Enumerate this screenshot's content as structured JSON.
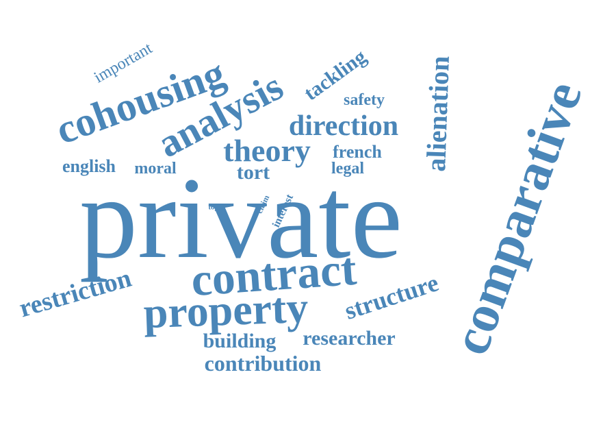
{
  "color": "#4a86b8",
  "words": [
    {
      "id": "private",
      "text": "private"
    },
    {
      "id": "comparative",
      "text": "comparative"
    },
    {
      "id": "contract",
      "text": "contract"
    },
    {
      "id": "property",
      "text": "property"
    },
    {
      "id": "cohousing",
      "text": "cohousing"
    },
    {
      "id": "analysis",
      "text": "analysis"
    },
    {
      "id": "theory",
      "text": "theory"
    },
    {
      "id": "direction",
      "text": "direction"
    },
    {
      "id": "alienation",
      "text": "alienation"
    },
    {
      "id": "restriction",
      "text": "restriction"
    },
    {
      "id": "structure",
      "text": "structure"
    },
    {
      "id": "building",
      "text": "building"
    },
    {
      "id": "researcher",
      "text": "researcher"
    },
    {
      "id": "contribution",
      "text": "contribution"
    },
    {
      "id": "tackling",
      "text": "tackling"
    },
    {
      "id": "important",
      "text": "important"
    },
    {
      "id": "safety",
      "text": "safety"
    },
    {
      "id": "english",
      "text": "english"
    },
    {
      "id": "moral",
      "text": "moral"
    },
    {
      "id": "tort",
      "text": "tort"
    },
    {
      "id": "french",
      "text": "french"
    },
    {
      "id": "legal",
      "text": "legal"
    },
    {
      "id": "interest",
      "text": "interest"
    },
    {
      "id": "claim",
      "text": "claim"
    },
    {
      "id": "topic",
      "text": "topic"
    }
  ]
}
